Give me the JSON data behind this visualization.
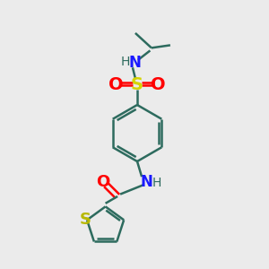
{
  "bg_color": "#ebebeb",
  "bond_color": "#2d6b5e",
  "S_sulfonyl_color": "#d4d400",
  "O_color": "#ff0000",
  "N_color": "#1a1aff",
  "H_color": "#2d6b5e",
  "S_thiophene_color": "#b8b800",
  "line_width": 1.8,
  "fig_w": 3.0,
  "fig_h": 3.0,
  "dpi": 100,
  "xlim": [
    0,
    10
  ],
  "ylim": [
    0,
    10
  ]
}
